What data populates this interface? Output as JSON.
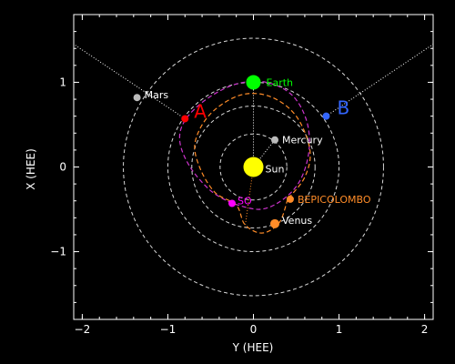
{
  "chart_data": {
    "type": "scatter",
    "title": "",
    "xlabel": "Y (HEE)",
    "ylabel": "X (HEE)",
    "xlim": [
      -2.1,
      2.1
    ],
    "ylim": [
      1.8,
      -1.8
    ],
    "x_ticks": [
      -2,
      -1,
      0,
      1,
      2
    ],
    "x_tick_labels": [
      "−2",
      "−1",
      "0",
      "1",
      "2"
    ],
    "y_ticks": [
      -1,
      0,
      1
    ],
    "y_tick_labels": [
      "−1",
      "0",
      "1"
    ],
    "background": "#000000",
    "axis_color": "#ffffff",
    "orbit_circles": [
      {
        "radius": 0.39,
        "color": "#ffffff"
      },
      {
        "radius": 0.72,
        "color": "#ffffff"
      },
      {
        "radius": 1.0,
        "color": "#ffffff"
      },
      {
        "radius": 1.52,
        "color": "#ffffff"
      }
    ],
    "trajectories": [
      {
        "body": "SO",
        "color": "#cc33cc",
        "points": [
          [
            -0.25,
            -0.43
          ],
          [
            -0.5,
            -0.28
          ],
          [
            -0.74,
            0.0
          ],
          [
            -0.86,
            0.3
          ],
          [
            -0.8,
            0.55
          ],
          [
            -0.55,
            0.8
          ],
          [
            -0.2,
            0.98
          ],
          [
            0.15,
            1.0
          ],
          [
            0.45,
            0.85
          ],
          [
            0.62,
            0.55
          ],
          [
            0.65,
            0.2
          ],
          [
            0.55,
            -0.15
          ],
          [
            0.35,
            -0.38
          ],
          [
            0.08,
            -0.5
          ],
          [
            -0.25,
            -0.43
          ]
        ]
      },
      {
        "body": "BEPICOLOMBO",
        "color": "#ff8c28",
        "points": [
          [
            0.4,
            -0.38
          ],
          [
            0.3,
            -0.66
          ],
          [
            0.1,
            -0.78
          ],
          [
            -0.1,
            -0.68
          ],
          [
            -0.2,
            -0.45
          ],
          [
            -0.45,
            -0.3
          ],
          [
            -0.63,
            0.0
          ],
          [
            -0.68,
            0.3
          ],
          [
            -0.5,
            0.63
          ],
          [
            -0.15,
            0.85
          ],
          [
            0.2,
            0.83
          ],
          [
            0.5,
            0.6
          ],
          [
            0.66,
            0.2
          ],
          [
            0.6,
            -0.12
          ],
          [
            0.4,
            -0.38
          ]
        ]
      }
    ],
    "sun_lines": [
      {
        "to": [
          -0.1,
          -0.72
        ],
        "color": "#ff8c28"
      },
      {
        "to": [
          0.25,
          0.32
        ],
        "color": "#ffffff"
      },
      {
        "to": [
          0.0,
          1.0
        ],
        "color": "#ffffff"
      }
    ],
    "fov_lines": [
      {
        "from": [
          -0.8,
          0.57
        ],
        "to": [
          -2.1,
          1.45
        ]
      },
      {
        "from": [
          0.85,
          0.6
        ],
        "to": [
          2.1,
          1.45
        ]
      }
    ],
    "bodies": [
      {
        "name": "Sun",
        "x": 0.0,
        "y": 0.0,
        "color": "#ffff00",
        "size": 11,
        "label": "Sun",
        "label_color": "#ffffff",
        "dx": 13,
        "dy": 2
      },
      {
        "name": "Earth",
        "x": 0.0,
        "y": 1.0,
        "color": "#00ff00",
        "size": 8,
        "label": "Earth",
        "label_color": "#00ff00",
        "dx": 14,
        "dy": 0
      },
      {
        "name": "Mercury",
        "x": 0.25,
        "y": 0.32,
        "color": "#bbbbbb",
        "size": 4,
        "label": "Mercury",
        "label_color": "#ffffff",
        "dx": 8,
        "dy": 0
      },
      {
        "name": "Venus",
        "x": 0.25,
        "y": -0.67,
        "color": "#ff8c28",
        "size": 5,
        "label": "Venus",
        "label_color": "#ffffff",
        "dx": 8,
        "dy": -4
      },
      {
        "name": "BEPICOLOMBO",
        "x": 0.43,
        "y": -0.38,
        "color": "#ff8c28",
        "size": 4,
        "label": "BEPICOLOMBO",
        "label_color": "#ff8c28",
        "dx": 8,
        "dy": 0
      },
      {
        "name": "SO",
        "x": -0.25,
        "y": -0.43,
        "color": "#ff00ff",
        "size": 4,
        "label": "SO",
        "label_color": "#ff00ff",
        "dx": 6,
        "dy": -3
      },
      {
        "name": "Mars",
        "x": -1.36,
        "y": 0.82,
        "color": "#bbbbbb",
        "size": 4,
        "label": "Mars",
        "label_color": "#ffffff",
        "dx": 8,
        "dy": -3
      },
      {
        "name": "STEREO-A",
        "x": -0.8,
        "y": 0.57,
        "color": "#ff0000",
        "size": 4,
        "label": "A",
        "label_color": "#ff0000",
        "dx": 10,
        "dy": -5,
        "big": true
      },
      {
        "name": "STEREO-B",
        "x": 0.85,
        "y": 0.6,
        "color": "#3366ff",
        "size": 4,
        "label": "B",
        "label_color": "#3366ff",
        "dx": 12,
        "dy": -6,
        "big": true
      }
    ]
  }
}
